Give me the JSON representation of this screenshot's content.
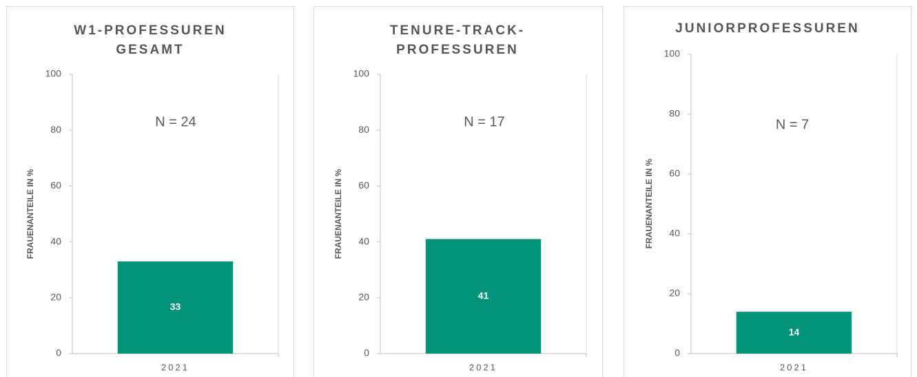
{
  "chart_data": [
    {
      "type": "bar",
      "title": [
        "W1-PROFESSUREN",
        "GESAMT"
      ],
      "annotation": "N = 24",
      "ylabel": "FRAUENANTEILE IN %",
      "categories": [
        "2021"
      ],
      "values": [
        33
      ],
      "color": "#009379",
      "ylim": [
        0,
        100
      ],
      "yticks": [
        0,
        20,
        40,
        60,
        80,
        100
      ],
      "grid": false
    },
    {
      "type": "bar",
      "title": [
        "TENURE-TRACK-",
        "PROFESSUREN"
      ],
      "annotation": "N = 17",
      "ylabel": "FRAUENANTEILE IN %",
      "categories": [
        "2021"
      ],
      "values": [
        41
      ],
      "color": "#009379",
      "ylim": [
        0,
        100
      ],
      "yticks": [
        0,
        20,
        40,
        60,
        80,
        100
      ],
      "grid": false
    },
    {
      "type": "bar",
      "title": [
        "JUNIORPROFESSUREN"
      ],
      "annotation": "N = 7",
      "ylabel": "FRAUENANTEILE IN %",
      "categories": [
        "2021"
      ],
      "values": [
        14
      ],
      "color": "#009379",
      "ylim": [
        0,
        100
      ],
      "yticks": [
        0,
        20,
        40,
        60,
        80,
        100
      ],
      "grid": false
    }
  ]
}
